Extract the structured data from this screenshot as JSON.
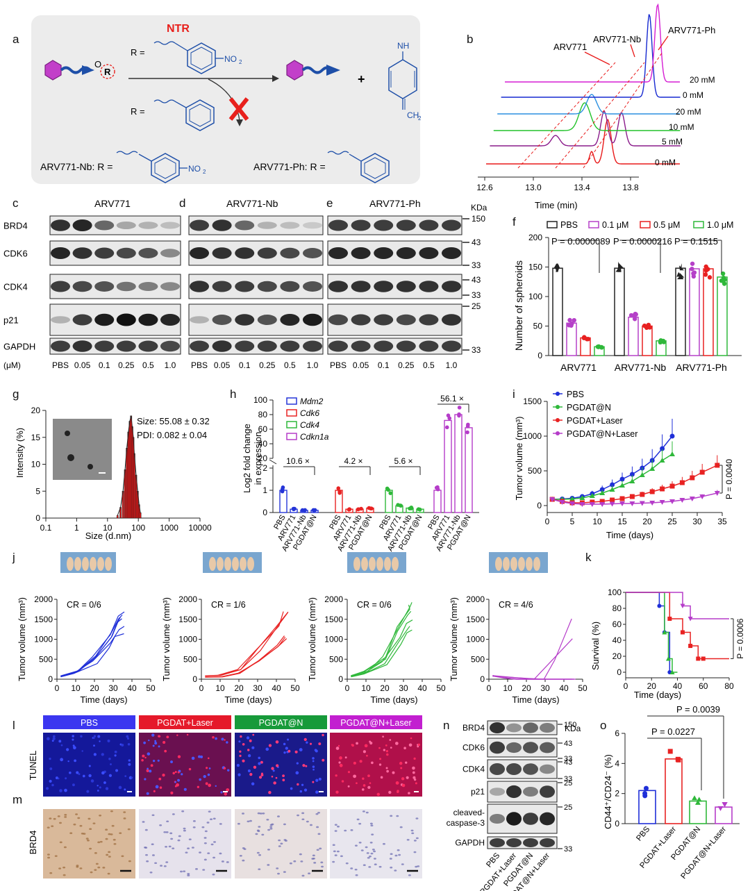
{
  "panel_letters": {
    "a": "a",
    "b": "b",
    "c": "c",
    "d": "d",
    "e": "e",
    "f": "f",
    "g": "g",
    "h": "h",
    "i": "i",
    "j": "j",
    "k": "k",
    "l": "l",
    "m": "m",
    "n": "n",
    "o": "o"
  },
  "a": {
    "ntr": "NTR",
    "r_eq": "R =",
    "no2": "NO",
    "no2_sub": "2",
    "nh": "NH",
    "ch2": "CH",
    "ch2_sub": "2",
    "plus": "+",
    "o": "O",
    "r": "R",
    "nb_label": "ARV771-Nb:  R =",
    "ph_label": "ARV771-Ph:  R =",
    "colors": {
      "purple": "#c23fc9",
      "blue": "#1e4fa8",
      "ntr": "#e8201c"
    }
  },
  "b": {
    "labels": [
      "ARV771",
      "ARV771-Nb",
      "ARV771-Ph"
    ],
    "traces": [
      "20 mM",
      "0 mM",
      "20 mM",
      "10 mM",
      "5 mM",
      "0 mM"
    ],
    "xticks": [
      "12.6",
      "13.0",
      "13.4",
      "13.8"
    ],
    "xlabel": "Time (min)",
    "colors": [
      "#d51dd3",
      "#1528d0",
      "#2a8fe0",
      "#22c22a",
      "#8a1a8a",
      "#e81818"
    ]
  },
  "blots": {
    "c_title": "ARV771",
    "d_title": "ARV771-Nb",
    "e_title": "ARV771-Ph",
    "rows": [
      "BRD4",
      "CDK6",
      "CDK4",
      "p21",
      "GAPDH"
    ],
    "units": "(μM)",
    "doses": [
      "PBS",
      "0.05",
      "0.1",
      "0.25",
      "0.5",
      "1.0"
    ],
    "kda": "KDa",
    "mw": [
      "150",
      "43",
      "33",
      "43",
      "33",
      "25",
      "33"
    ]
  },
  "f": {
    "legend": [
      "PBS",
      "0.1 μM",
      "0.5 μM",
      "1.0 μM"
    ],
    "colors": [
      "#222222",
      "#b540c8",
      "#e82020",
      "#2fb83a"
    ],
    "pvals": [
      "P = 0.0000089",
      "P = 0.0000216",
      "P = 0.1515"
    ],
    "ylabel": "Number of spheroids",
    "yticks": [
      "0",
      "50",
      "100",
      "150",
      "200"
    ],
    "chart_data": {
      "type": "bar",
      "categories": [
        "ARV771",
        "ARV771-Nb",
        "ARV771-Ph"
      ],
      "ylim": [
        0,
        200
      ],
      "ylabel": "Number of spheroids",
      "series": [
        {
          "name": "PBS",
          "values": [
            148,
            148,
            148
          ]
        },
        {
          "name": "0.1 μM",
          "values": [
            55,
            65,
            147
          ]
        },
        {
          "name": "0.5 μM",
          "values": [
            30,
            50,
            147
          ]
        },
        {
          "name": "1.0 μM",
          "values": [
            15,
            25,
            133
          ]
        }
      ]
    }
  },
  "g": {
    "size": "Size: 55.08 ± 0.32",
    "pdi": "PDI: 0.082 ± 0.04",
    "ylabel": "Intensity (%)",
    "xlabel": "Size (d.nm)",
    "yticks": [
      "0",
      "5",
      "10",
      "15",
      "20"
    ],
    "xticks": [
      "0.1",
      "1",
      "10",
      "100",
      "1000",
      "10000"
    ],
    "chart_data": {
      "type": "bar",
      "x": [
        20,
        25,
        30,
        35,
        40,
        45,
        50,
        55,
        60,
        65,
        70,
        80,
        90,
        100,
        110
      ],
      "values": [
        0.5,
        2,
        5,
        9,
        13,
        16,
        18,
        19,
        17,
        15,
        12,
        8,
        5,
        2.5,
        1
      ],
      "ylim": [
        0,
        20
      ],
      "xlabel": "Size (d.nm)",
      "ylabel": "Intensity (%)"
    }
  },
  "h": {
    "legend": [
      "Mdm2",
      "Cdk6",
      "Cdk4",
      "Cdkn1a"
    ],
    "colors": [
      "#2535d8",
      "#e82222",
      "#2fb83a",
      "#b53cc9"
    ],
    "folds": [
      "10.6 ×",
      "4.2 ×",
      "5.6 ×",
      "56.1 ×"
    ],
    "ylabel1": "Log2 fold change",
    "ylabel2": "in expression",
    "yticks_low": [
      "0",
      "1",
      "2"
    ],
    "yticks_high": [
      "20",
      "40",
      "60",
      "80",
      "100"
    ],
    "xlabels": [
      "PBS",
      "ARV771",
      "ARV771-Nb",
      "PGDAT@N"
    ],
    "chart_data": {
      "type": "bar",
      "categories": [
        "PBS",
        "ARV771",
        "ARV771-Nb",
        "PGDAT@N"
      ],
      "series": [
        {
          "name": "Mdm2",
          "values": [
            1.0,
            0.15,
            0.1,
            0.1
          ]
        },
        {
          "name": "Cdk6",
          "values": [
            1.0,
            0.15,
            0.15,
            0.2
          ]
        },
        {
          "name": "Cdk4",
          "values": [
            1.0,
            0.3,
            0.2,
            0.15
          ]
        },
        {
          "name": "Cdkn1a",
          "values": [
            1.0,
            72,
            80,
            62
          ]
        }
      ]
    }
  },
  "i": {
    "legend": [
      "PBS",
      "PGDAT@N",
      "PGDAT+Laser",
      "PGDAT@N+Laser"
    ],
    "colors": [
      "#1f2fd8",
      "#2fb83a",
      "#e82222",
      "#b53cc9"
    ],
    "ylabel": "Tumor volume (mm³)",
    "xlabel": "Time (days)",
    "yticks": [
      "0",
      "500",
      "1000",
      "1500"
    ],
    "xticks": [
      "0",
      "5",
      "10",
      "15",
      "20",
      "25",
      "30",
      "35"
    ],
    "pval": "P = 0.0040",
    "chart_data": {
      "type": "line",
      "ylim": [
        0,
        1500
      ],
      "xlim": [
        0,
        35
      ],
      "xlabel": "Time (days)",
      "series": [
        {
          "name": "PBS",
          "x": [
            1,
            3,
            5,
            7,
            9,
            11,
            13,
            15,
            17,
            19,
            21,
            23,
            25
          ],
          "y": [
            90,
            95,
            105,
            130,
            170,
            230,
            300,
            380,
            450,
            540,
            650,
            820,
            1000
          ]
        },
        {
          "name": "PGDAT@N",
          "x": [
            1,
            3,
            5,
            7,
            9,
            11,
            13,
            15,
            17,
            19,
            21,
            23,
            25
          ],
          "y": [
            90,
            90,
            95,
            110,
            140,
            180,
            230,
            290,
            350,
            440,
            530,
            650,
            740
          ]
        },
        {
          "name": "PGDAT+Laser",
          "x": [
            1,
            3,
            5,
            7,
            9,
            11,
            13,
            15,
            17,
            19,
            21,
            23,
            25,
            27,
            29,
            31,
            34
          ],
          "y": [
            90,
            60,
            40,
            40,
            50,
            60,
            80,
            100,
            130,
            160,
            200,
            240,
            280,
            330,
            400,
            480,
            580
          ]
        },
        {
          "name": "PGDAT@N+Laser",
          "x": [
            1,
            3,
            5,
            7,
            9,
            11,
            13,
            15,
            17,
            19,
            21,
            23,
            25,
            27,
            29,
            31,
            34
          ],
          "y": [
            90,
            50,
            30,
            20,
            20,
            20,
            25,
            30,
            30,
            35,
            40,
            50,
            60,
            80,
            100,
            130,
            180
          ]
        }
      ]
    }
  },
  "j": {
    "cr": [
      "CR = 0/6",
      "CR = 1/6",
      "CR = 0/6",
      "CR = 4/6"
    ],
    "colors": [
      "#1f2fd8",
      "#e82222",
      "#2fb83a",
      "#b53cc9"
    ],
    "ylabel": "Tumor volume (mm³)",
    "xlabel": "Time (days)",
    "yticks": [
      "0",
      "500",
      "1000",
      "1500",
      "2000"
    ],
    "xticks": [
      "0",
      "10",
      "20",
      "30",
      "40",
      "50"
    ]
  },
  "k": {
    "ylabel": "Survival (%)",
    "xlabel": "Time (days)",
    "yticks": [
      "0",
      "20",
      "40",
      "60",
      "80",
      "100"
    ],
    "xticks": [
      "0",
      "20",
      "40",
      "60",
      "80"
    ],
    "pval": "P = 0.0006",
    "chart_data": {
      "type": "line",
      "ylim": [
        0,
        100
      ],
      "xlim": [
        0,
        80
      ],
      "series": [
        {
          "name": "PBS",
          "x": [
            0,
            26,
            26,
            30,
            30,
            34,
            34,
            36
          ],
          "y": [
            100,
            100,
            83,
            83,
            50,
            50,
            0,
            0
          ]
        },
        {
          "name": "PGDAT@N",
          "x": [
            0,
            30,
            30,
            33,
            33,
            36,
            36,
            40
          ],
          "y": [
            100,
            100,
            50,
            50,
            17,
            17,
            0,
            0
          ]
        },
        {
          "name": "PGDAT+Laser",
          "x": [
            0,
            34,
            34,
            44,
            44,
            50,
            50,
            56,
            56,
            60,
            60,
            80
          ],
          "y": [
            100,
            100,
            67,
            67,
            50,
            50,
            33,
            33,
            17,
            17,
            17,
            17
          ]
        },
        {
          "name": "PGDAT@N+Laser",
          "x": [
            0,
            44,
            44,
            50,
            50,
            80
          ],
          "y": [
            100,
            100,
            83,
            83,
            67,
            67
          ]
        }
      ]
    }
  },
  "l": {
    "headers": [
      "PBS",
      "PGDAT+Laser",
      "PGDAT@N",
      "PGDAT@N+Laser"
    ],
    "header_colors": [
      "#3b36f0",
      "#e5192a",
      "#179a3a",
      "#c21fd0"
    ],
    "row_label": "TUNEL"
  },
  "m": {
    "row_label": "BRD4"
  },
  "n": {
    "rows": [
      "BRD4",
      "CDK6",
      "CDK4",
      "p21",
      "cleaved-",
      "caspase-3",
      "GAPDH"
    ],
    "kda": "KDa",
    "mw": [
      "150",
      "43",
      "33",
      "43",
      "33",
      "25",
      "25",
      "33"
    ],
    "xlabels": [
      "PBS",
      "PGDAT+Laser",
      "PGDAT@N",
      "PGDAT@N+Laser"
    ]
  },
  "o": {
    "ylabel": "CD44⁺/CD24⁻ (%)",
    "yticks": [
      "0",
      "2",
      "4",
      "6"
    ],
    "pvals": [
      "P = 0.0227",
      "P = 0.0039"
    ],
    "xlabels": [
      "PBS",
      "PGDAT+Laser",
      "PGDAT@N",
      "PGDAT@N+Laser"
    ],
    "colors": [
      "#1f2fd8",
      "#e82222",
      "#2fb83a",
      "#b53cc9"
    ],
    "chart_data": {
      "type": "bar",
      "categories": [
        "PBS",
        "PGDAT+Laser",
        "PGDAT@N",
        "PGDAT@N+Laser"
      ],
      "values": [
        2.2,
        4.3,
        1.5,
        1.1
      ],
      "ylim": [
        0,
        6
      ]
    }
  }
}
